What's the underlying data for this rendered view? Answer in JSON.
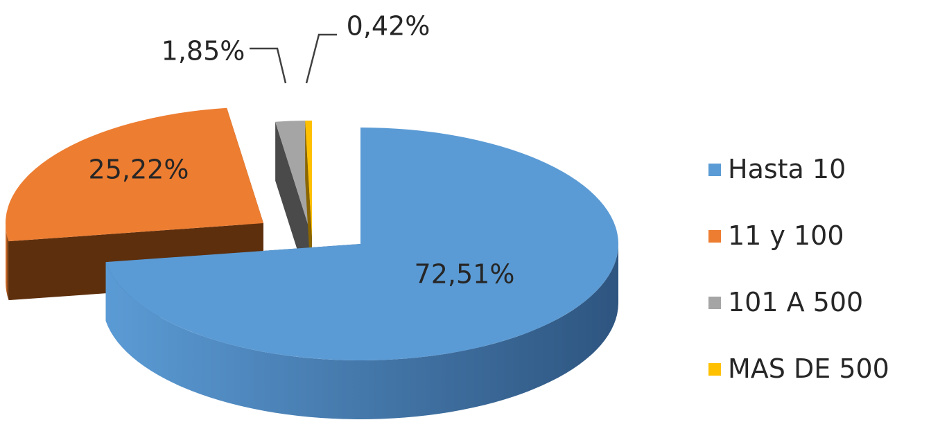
{
  "chart_data": {
    "type": "pie",
    "style": "3d-exploded",
    "title": "",
    "categories": [
      "Hasta 10",
      "11 y 100",
      "101 A 500",
      "MAS DE 500"
    ],
    "values": [
      72.51,
      25.22,
      1.85,
      0.42
    ],
    "value_labels": [
      "72,51%",
      "25,22%",
      "1,85%",
      "0,42%"
    ],
    "colors": [
      "#5B9BD5",
      "#ED7D31",
      "#A5A5A5",
      "#FFC000"
    ],
    "side_colors": [
      "#2E5580",
      "#5E2F0D",
      "#4A4A4A",
      "#8A6500"
    ],
    "legend": {
      "position": "right",
      "entries": [
        "Hasta 10",
        "11 y 100",
        "101 A 500",
        "MAS DE 500"
      ]
    }
  }
}
